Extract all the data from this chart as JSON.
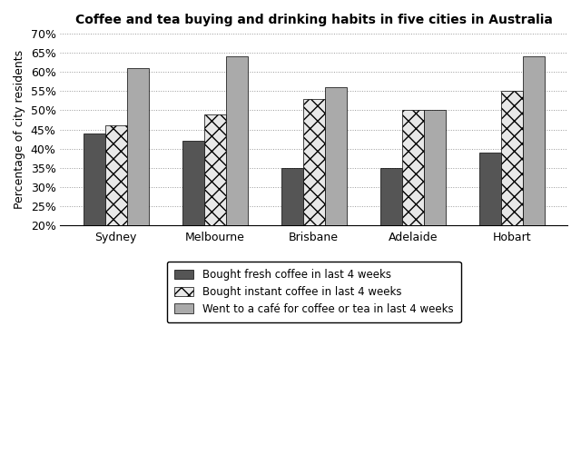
{
  "title": "Coffee and tea buying and drinking habits in five cities in Australia",
  "cities": [
    "Sydney",
    "Melbourne",
    "Brisbane",
    "Adelaide",
    "Hobart"
  ],
  "series": [
    {
      "label": "Bought fresh coffee in last 4 weeks",
      "values": [
        44,
        42,
        35,
        35,
        39
      ],
      "color": "#555555",
      "hatch": ""
    },
    {
      "label": "Bought instant coffee in last 4 weeks",
      "values": [
        46,
        49,
        53,
        50,
        55
      ],
      "color": "#e8e8e8",
      "hatch": "xx"
    },
    {
      "label": "Went to a café for coffee or tea in last 4 weeks",
      "values": [
        61,
        64,
        56,
        50,
        64
      ],
      "color": "#aaaaaa",
      "hatch": ""
    }
  ],
  "ylabel": "Percentage of city residents",
  "ylim": [
    20,
    70
  ],
  "yticks": [
    20,
    25,
    30,
    35,
    40,
    45,
    50,
    55,
    60,
    65,
    70
  ],
  "bar_width": 0.22,
  "background_color": "#ffffff",
  "title_fontsize": 10,
  "axis_fontsize": 9,
  "legend_fontsize": 8.5
}
